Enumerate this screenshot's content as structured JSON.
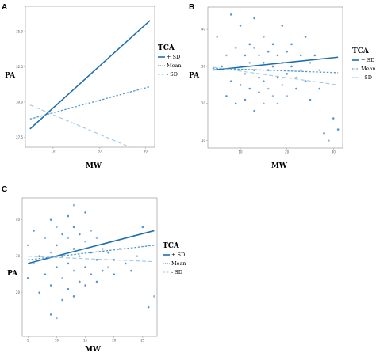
{
  "chart_data": [
    {
      "panel": "A",
      "type": "line",
      "xlabel": "MW",
      "ylabel": "PA",
      "xlim": [
        4,
        32
      ],
      "ylim": [
        26.8,
        36.8
      ],
      "xticks": [
        10,
        20,
        30
      ],
      "yticks": [
        27.5,
        30.0,
        32.5,
        35.0
      ],
      "ytick_labels": [
        "27.5",
        "30.0",
        "32.5",
        "35.0"
      ],
      "legend_title": "TCA",
      "series": [
        {
          "name": "+ SD",
          "style": "solid",
          "x": [
            5,
            31
          ],
          "y": [
            28.1,
            35.8
          ]
        },
        {
          "name": "Mean",
          "style": "dotted",
          "x": [
            5,
            31
          ],
          "y": [
            28.8,
            31.1
          ]
        },
        {
          "name": "- SD",
          "style": "dashed",
          "x": [
            5,
            31
          ],
          "y": [
            29.8,
            26.2
          ]
        }
      ],
      "points": []
    },
    {
      "panel": "B",
      "type": "scatter",
      "xlabel": "MW",
      "ylabel": "PA",
      "xlim": [
        3,
        32
      ],
      "ylim": [
        8,
        46
      ],
      "xticks": [
        10,
        20,
        30
      ],
      "yticks": [
        10,
        20,
        30,
        40
      ],
      "ytick_labels": [
        "10",
        "20",
        "30",
        "40"
      ],
      "legend_title": "TCA",
      "series": [
        {
          "name": "+ SD",
          "style": "solid",
          "x": [
            4,
            31
          ],
          "y": [
            29.0,
            32.5
          ]
        },
        {
          "name": "Mean",
          "style": "dotted",
          "x": [
            4,
            31
          ],
          "y": [
            29.5,
            28.3
          ]
        },
        {
          "name": "- SD",
          "style": "dashed",
          "x": [
            4,
            31
          ],
          "y": [
            29.8,
            25.0
          ]
        }
      ],
      "points": [
        [
          5,
          38
        ],
        [
          6,
          30
        ],
        [
          7,
          22
        ],
        [
          7,
          33
        ],
        [
          8,
          44
        ],
        [
          8,
          26
        ],
        [
          9,
          35
        ],
        [
          9,
          20
        ],
        [
          10,
          41
        ],
        [
          10,
          30
        ],
        [
          10,
          25
        ],
        [
          11,
          33
        ],
        [
          11,
          28
        ],
        [
          11,
          21
        ],
        [
          12,
          36
        ],
        [
          12,
          31
        ],
        [
          12,
          24
        ],
        [
          13,
          43
        ],
        [
          13,
          35
        ],
        [
          13,
          29
        ],
        [
          13,
          18
        ],
        [
          14,
          33
        ],
        [
          14,
          27
        ],
        [
          14,
          23
        ],
        [
          15,
          38
        ],
        [
          15,
          31
        ],
        [
          15,
          26
        ],
        [
          15,
          20
        ],
        [
          16,
          34
        ],
        [
          16,
          29
        ],
        [
          16,
          24
        ],
        [
          17,
          36
        ],
        [
          17,
          30
        ],
        [
          17,
          22
        ],
        [
          18,
          33
        ],
        [
          18,
          27
        ],
        [
          18,
          20
        ],
        [
          19,
          41
        ],
        [
          19,
          31
        ],
        [
          19,
          25
        ],
        [
          20,
          34
        ],
        [
          20,
          28
        ],
        [
          20,
          22
        ],
        [
          21,
          36
        ],
        [
          21,
          30
        ],
        [
          22,
          27
        ],
        [
          22,
          24
        ],
        [
          23,
          33
        ],
        [
          23,
          29
        ],
        [
          24,
          38
        ],
        [
          24,
          26
        ],
        [
          25,
          31
        ],
        [
          25,
          21
        ],
        [
          26,
          33
        ],
        [
          27,
          29
        ],
        [
          27,
          24
        ],
        [
          28,
          12
        ],
        [
          29,
          10
        ],
        [
          30,
          16
        ],
        [
          31,
          13
        ]
      ]
    },
    {
      "panel": "C",
      "type": "scatter",
      "xlabel": "MW",
      "ylabel": "PA",
      "xlim": [
        4,
        27.5
      ],
      "ylim": [
        8,
        46
      ],
      "xticks": [
        5,
        10,
        15,
        20,
        25
      ],
      "yticks": [
        20,
        30,
        40
      ],
      "ytick_labels": [
        "20",
        "30",
        "40"
      ],
      "legend_title": "TCA",
      "series": [
        {
          "name": "+ SD",
          "style": "solid",
          "x": [
            5,
            27
          ],
          "y": [
            28.0,
            37.0
          ]
        },
        {
          "name": "Mean",
          "style": "dotted",
          "x": [
            5,
            27
          ],
          "y": [
            29.0,
            33.0
          ]
        },
        {
          "name": "- SD",
          "style": "dashed",
          "x": [
            5,
            27
          ],
          "y": [
            30.0,
            28.5
          ]
        }
      ],
      "points": [
        [
          5,
          33
        ],
        [
          5,
          24
        ],
        [
          6,
          37
        ],
        [
          6,
          28
        ],
        [
          7,
          30
        ],
        [
          7,
          20
        ],
        [
          8,
          35
        ],
        [
          8,
          25
        ],
        [
          9,
          40
        ],
        [
          9,
          31
        ],
        [
          9,
          22
        ],
        [
          9,
          14
        ],
        [
          10,
          38
        ],
        [
          10,
          33
        ],
        [
          10,
          27
        ],
        [
          10,
          13
        ],
        [
          11,
          36
        ],
        [
          11,
          30
        ],
        [
          11,
          24
        ],
        [
          11,
          18
        ],
        [
          12,
          41
        ],
        [
          12,
          35
        ],
        [
          12,
          28
        ],
        [
          12,
          21
        ],
        [
          13,
          44
        ],
        [
          13,
          38
        ],
        [
          13,
          32
        ],
        [
          13,
          26
        ],
        [
          13,
          19
        ],
        [
          14,
          36
        ],
        [
          14,
          30
        ],
        [
          14,
          23
        ],
        [
          15,
          42
        ],
        [
          15,
          34
        ],
        [
          15,
          27
        ],
        [
          15,
          22
        ],
        [
          16,
          37
        ],
        [
          16,
          31
        ],
        [
          16,
          25
        ],
        [
          17,
          35
        ],
        [
          17,
          29
        ],
        [
          17,
          23
        ],
        [
          18,
          32
        ],
        [
          18,
          26
        ],
        [
          19,
          31
        ],
        [
          19,
          27
        ],
        [
          20,
          29
        ],
        [
          20,
          25
        ],
        [
          21,
          32
        ],
        [
          22,
          28
        ],
        [
          23,
          26
        ],
        [
          24,
          30
        ],
        [
          25,
          38
        ],
        [
          26,
          16
        ],
        [
          27,
          19
        ]
      ]
    }
  ]
}
